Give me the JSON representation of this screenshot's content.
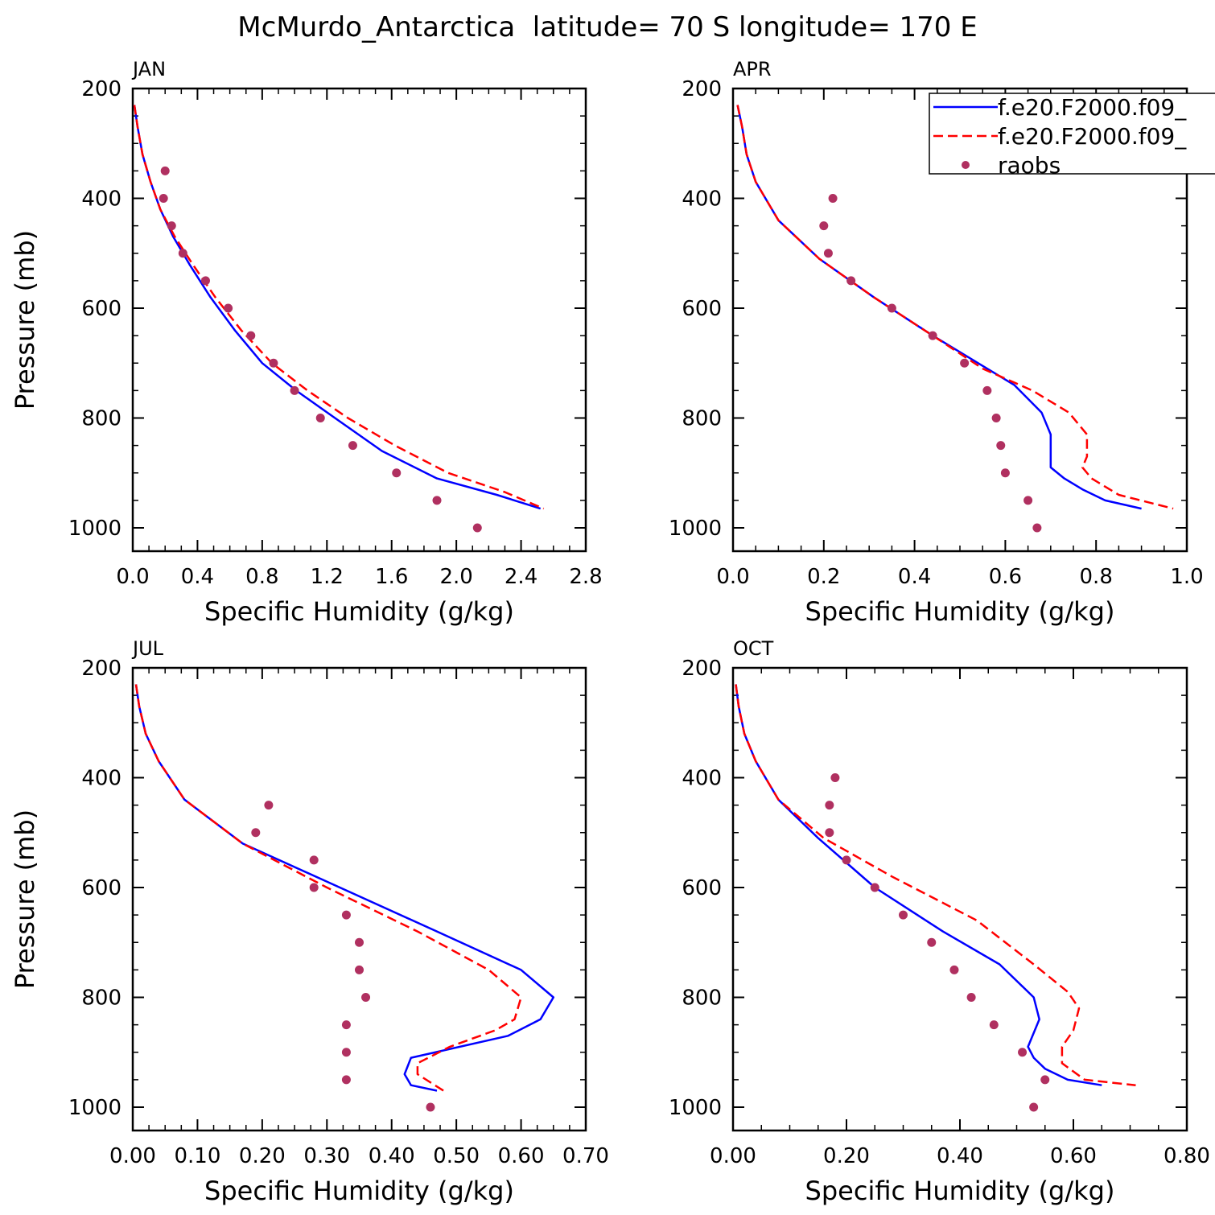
{
  "title": "McMurdo_Antarctica  latitude= 70 S longitude= 170 E",
  "legend": {
    "placement": "top-right of APR panel",
    "entries": [
      {
        "label": "f.e20.F2000.f09_",
        "color": "#0000ff",
        "style": "solid"
      },
      {
        "label": "f.e20.F2000.f09_",
        "color": "#ff0000",
        "style": "dashed"
      },
      {
        "label": "raobs",
        "color": "#b03060",
        "style": "dots"
      }
    ]
  },
  "chart_data": [
    {
      "type": "line",
      "panel_label": "JAN",
      "xlabel": "Specific Humidity (g/kg)",
      "ylabel": "Pressure (mb)",
      "xlim": [
        0,
        2.8
      ],
      "ylim": [
        200,
        1000
      ],
      "y_inverted": true,
      "xticks": [
        "0.0",
        "0.4",
        "0.8",
        "1.2",
        "1.6",
        "2.0",
        "2.4",
        "2.8"
      ],
      "yticks": [
        "200",
        "400",
        "600",
        "800",
        "1000"
      ],
      "series": [
        {
          "color": "#0000ff",
          "style": "solid",
          "x": [
            0.01,
            0.03,
            0.06,
            0.11,
            0.17,
            0.25,
            0.35,
            0.48,
            0.63,
            0.8,
            1.01,
            1.25,
            1.54,
            1.88,
            2.25,
            2.52
          ],
          "y": [
            230,
            270,
            320,
            370,
            420,
            470,
            520,
            580,
            640,
            700,
            750,
            800,
            860,
            910,
            940,
            965
          ]
        },
        {
          "color": "#ff0000",
          "style": "dashed",
          "x": [
            0.01,
            0.03,
            0.06,
            0.11,
            0.17,
            0.26,
            0.37,
            0.51,
            0.67,
            0.86,
            1.08,
            1.33,
            1.62,
            1.95,
            2.3,
            2.54
          ],
          "y": [
            230,
            270,
            320,
            370,
            420,
            470,
            520,
            580,
            640,
            700,
            750,
            800,
            850,
            900,
            935,
            965
          ]
        },
        {
          "color": "#b03060",
          "style": "dots",
          "x": [
            0.2,
            0.19,
            0.24,
            0.31,
            0.45,
            0.59,
            0.73,
            0.87,
            1.0,
            1.16,
            1.36,
            1.63,
            1.88,
            2.13
          ],
          "y": [
            350,
            400,
            450,
            500,
            550,
            600,
            650,
            700,
            750,
            800,
            850,
            900,
            950,
            1000
          ]
        }
      ]
    },
    {
      "type": "line",
      "panel_label": "APR",
      "xlabel": "Specific Humidity (g/kg)",
      "ylabel": "",
      "xlim": [
        0,
        1.0
      ],
      "ylim": [
        200,
        1000
      ],
      "y_inverted": true,
      "xticks": [
        "0.0",
        "0.2",
        "0.4",
        "0.6",
        "0.8",
        "1.0"
      ],
      "yticks": [
        "200",
        "400",
        "600",
        "800",
        "1000"
      ],
      "series": [
        {
          "color": "#0000ff",
          "style": "solid",
          "x": [
            0.01,
            0.02,
            0.03,
            0.05,
            0.1,
            0.19,
            0.31,
            0.44,
            0.54,
            0.62,
            0.68,
            0.7,
            0.7,
            0.73,
            0.77,
            0.82,
            0.9
          ],
          "y": [
            230,
            270,
            320,
            370,
            440,
            510,
            580,
            650,
            700,
            740,
            790,
            830,
            890,
            910,
            930,
            950,
            965
          ]
        },
        {
          "color": "#ff0000",
          "style": "dashed",
          "x": [
            0.01,
            0.02,
            0.03,
            0.05,
            0.1,
            0.19,
            0.31,
            0.44,
            0.55,
            0.66,
            0.74,
            0.78,
            0.78,
            0.77,
            0.79,
            0.85,
            0.97
          ],
          "y": [
            230,
            270,
            320,
            370,
            440,
            510,
            580,
            650,
            710,
            750,
            790,
            830,
            870,
            890,
            910,
            940,
            965
          ]
        },
        {
          "color": "#b03060",
          "style": "dots",
          "x": [
            0.22,
            0.2,
            0.21,
            0.26,
            0.35,
            0.44,
            0.51,
            0.56,
            0.58,
            0.59,
            0.6,
            0.65,
            0.67
          ],
          "y": [
            400,
            450,
            500,
            550,
            600,
            650,
            700,
            750,
            800,
            850,
            900,
            950,
            1000
          ]
        }
      ]
    },
    {
      "type": "line",
      "panel_label": "JUL",
      "xlabel": "Specific Humidity (g/kg)",
      "ylabel": "Pressure (mb)",
      "xlim": [
        0,
        0.7
      ],
      "ylim": [
        200,
        1000
      ],
      "y_inverted": true,
      "xticks": [
        "0.00",
        "0.10",
        "0.20",
        "0.30",
        "0.40",
        "0.50",
        "0.60",
        "0.70"
      ],
      "yticks": [
        "200",
        "400",
        "600",
        "800",
        "1000"
      ],
      "series": [
        {
          "color": "#0000ff",
          "style": "solid",
          "x": [
            0.005,
            0.01,
            0.02,
            0.04,
            0.08,
            0.17,
            0.32,
            0.47,
            0.6,
            0.65,
            0.63,
            0.58,
            0.43,
            0.42,
            0.43,
            0.47
          ],
          "y": [
            230,
            270,
            320,
            370,
            440,
            520,
            600,
            680,
            750,
            800,
            840,
            870,
            910,
            940,
            960,
            970
          ]
        },
        {
          "color": "#ff0000",
          "style": "dashed",
          "x": [
            0.005,
            0.01,
            0.02,
            0.04,
            0.08,
            0.17,
            0.3,
            0.44,
            0.55,
            0.6,
            0.59,
            0.56,
            0.49,
            0.44,
            0.44,
            0.48
          ],
          "y": [
            230,
            270,
            320,
            370,
            440,
            520,
            600,
            680,
            750,
            800,
            840,
            860,
            890,
            920,
            940,
            970
          ]
        },
        {
          "color": "#b03060",
          "style": "dots",
          "x": [
            0.21,
            0.19,
            0.28,
            0.28,
            0.33,
            0.35,
            0.35,
            0.36,
            0.33,
            0.33,
            0.33,
            0.46
          ],
          "y": [
            450,
            500,
            550,
            600,
            650,
            700,
            750,
            800,
            850,
            900,
            950,
            1000
          ]
        }
      ]
    },
    {
      "type": "line",
      "panel_label": "OCT",
      "xlabel": "Specific Humidity (g/kg)",
      "ylabel": "",
      "xlim": [
        0,
        0.8
      ],
      "ylim": [
        200,
        1000
      ],
      "y_inverted": true,
      "xticks": [
        "0.00",
        "0.20",
        "0.40",
        "0.60",
        "0.80"
      ],
      "yticks": [
        "200",
        "400",
        "600",
        "800",
        "1000"
      ],
      "series": [
        {
          "color": "#0000ff",
          "style": "solid",
          "x": [
            0.005,
            0.01,
            0.02,
            0.04,
            0.08,
            0.15,
            0.25,
            0.37,
            0.47,
            0.53,
            0.54,
            0.52,
            0.53,
            0.55,
            0.59,
            0.65
          ],
          "y": [
            230,
            270,
            320,
            370,
            440,
            510,
            600,
            680,
            740,
            800,
            840,
            890,
            910,
            930,
            950,
            960
          ]
        },
        {
          "color": "#ff0000",
          "style": "dashed",
          "x": [
            0.005,
            0.01,
            0.02,
            0.04,
            0.08,
            0.16,
            0.28,
            0.43,
            0.53,
            0.59,
            0.61,
            0.6,
            0.58,
            0.58,
            0.62,
            0.71
          ],
          "y": [
            230,
            270,
            320,
            370,
            440,
            510,
            580,
            660,
            740,
            790,
            820,
            860,
            890,
            920,
            950,
            960
          ]
        },
        {
          "color": "#b03060",
          "style": "dots",
          "x": [
            0.18,
            0.17,
            0.17,
            0.2,
            0.25,
            0.3,
            0.35,
            0.39,
            0.42,
            0.46,
            0.51,
            0.55,
            0.53
          ],
          "y": [
            400,
            450,
            500,
            550,
            600,
            650,
            700,
            750,
            800,
            850,
            900,
            950,
            1000
          ]
        }
      ]
    }
  ]
}
